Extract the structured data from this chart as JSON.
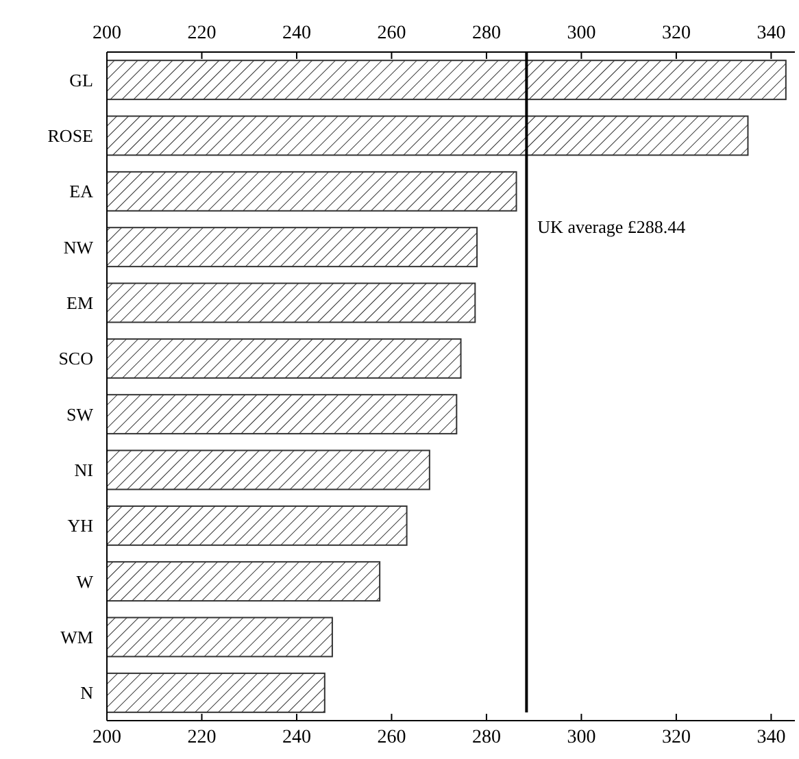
{
  "chart_data": {
    "type": "bar",
    "orientation": "horizontal",
    "categories": [
      "GL",
      "ROSE",
      "EA",
      "NW",
      "EM",
      "SCO",
      "SW",
      "NI",
      "YH",
      "W",
      "WM",
      "N"
    ],
    "values": [
      343.1,
      335.1,
      286.3,
      278.0,
      277.6,
      274.6,
      273.7,
      268.0,
      263.2,
      257.5,
      247.5,
      245.9
    ],
    "color": "#333333",
    "xlim": [
      200,
      345
    ],
    "xticks": [
      200,
      220,
      240,
      260,
      280,
      300,
      320,
      340
    ],
    "x2lim": [
      200,
      345
    ],
    "x2ticks": [
      200,
      220,
      240,
      260,
      280,
      300,
      320,
      340
    ],
    "ref_lines": [
      {
        "axis": "x",
        "value": 288.44,
        "label": "UK average £288.44",
        "color": "#000000"
      }
    ]
  }
}
